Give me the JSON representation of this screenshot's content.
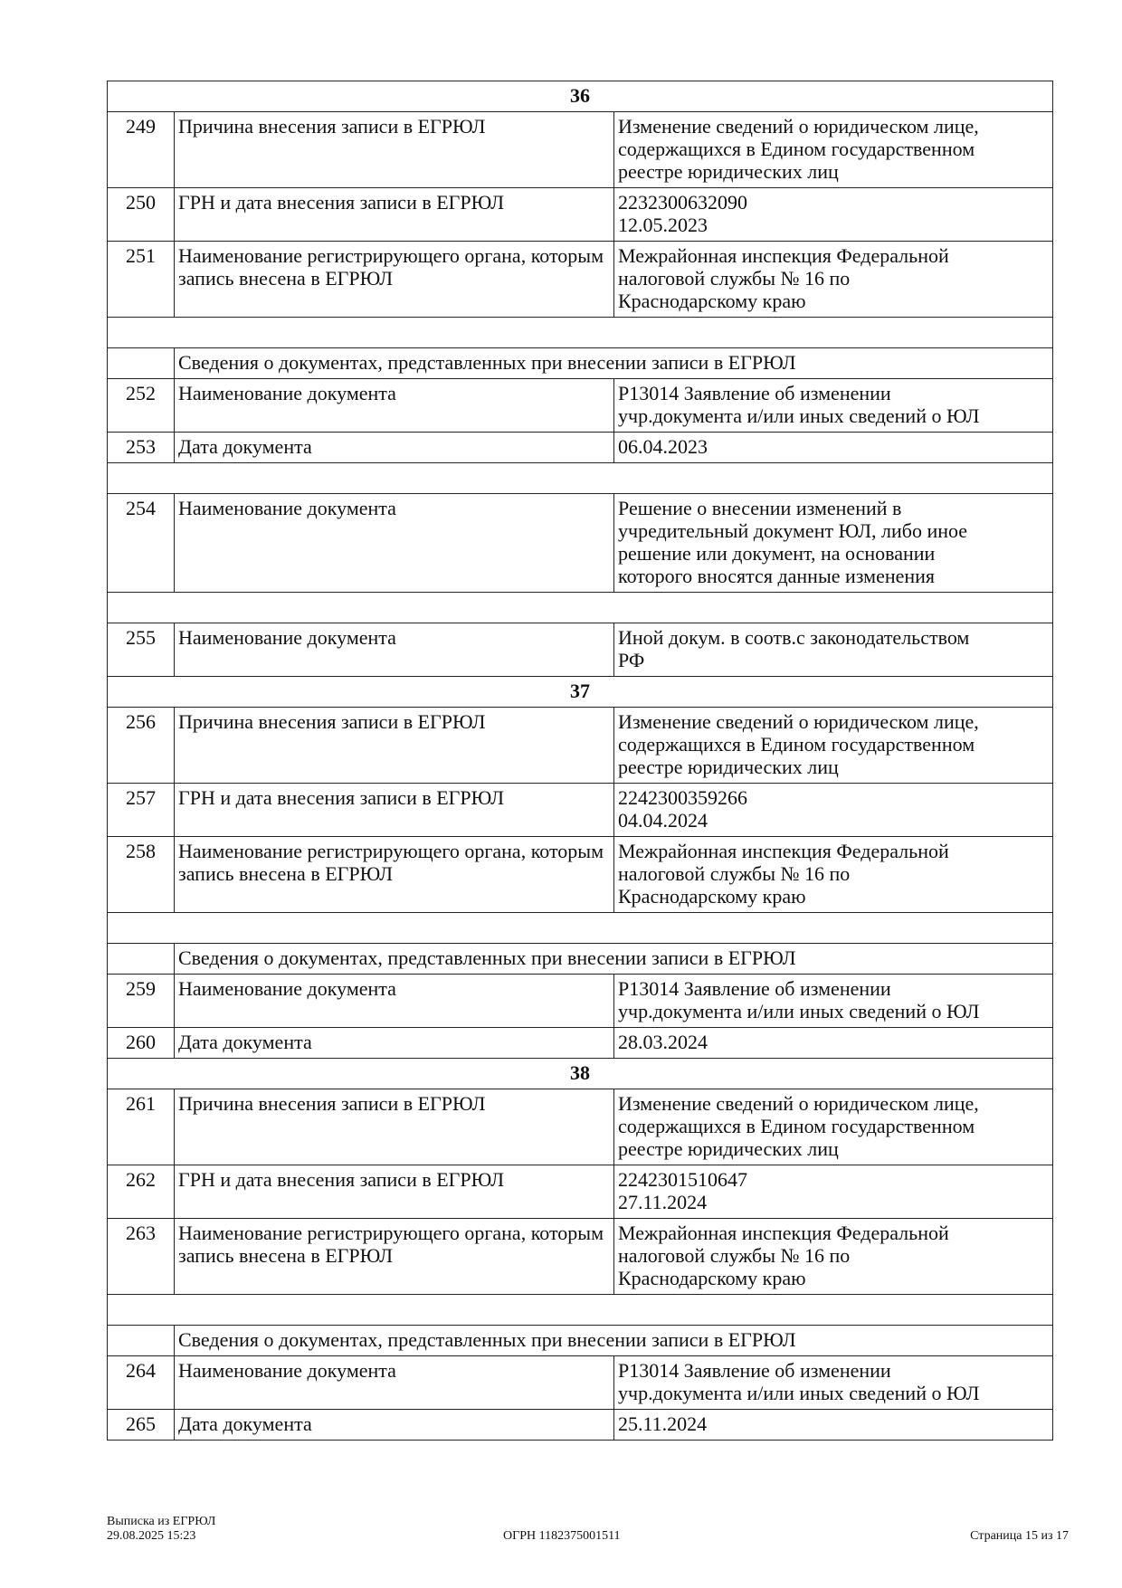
{
  "rows": [
    {
      "type": "group",
      "label": "36"
    },
    {
      "type": "item",
      "num": "249",
      "label": "Причина внесения записи в ЕГРЮЛ",
      "value": [
        "Изменение сведений о юридическом лице,",
        "содержащихся в Едином государственном",
        "реестре юридических лиц"
      ]
    },
    {
      "type": "item",
      "num": "250",
      "label": "ГРН и дата внесения записи в ЕГРЮЛ",
      "value": [
        "2232300632090",
        "12.05.2023"
      ]
    },
    {
      "type": "item",
      "num": "251",
      "label": "Наименование регистрирующего органа, которым запись внесена в ЕГРЮЛ",
      "value": [
        "Межрайонная инспекция Федеральной",
        "налоговой службы № 16 по",
        "Краснодарскому краю"
      ]
    },
    {
      "type": "empty"
    },
    {
      "type": "section",
      "label": "Сведения о документах, представленных при внесении записи в ЕГРЮЛ"
    },
    {
      "type": "item",
      "num": "252",
      "label": "Наименование документа",
      "value": [
        "Р13014 Заявление об изменении",
        "учр.документа и/или иных сведений о ЮЛ"
      ]
    },
    {
      "type": "item",
      "num": "253",
      "label": "Дата документа",
      "value": [
        "06.04.2023"
      ]
    },
    {
      "type": "empty"
    },
    {
      "type": "item",
      "num": "254",
      "label": "Наименование документа",
      "value": [
        "Решение о внесении изменений в",
        "учредительный документ ЮЛ, либо иное",
        "решение или документ, на основании",
        "которого вносятся данные изменения"
      ]
    },
    {
      "type": "empty"
    },
    {
      "type": "item",
      "num": "255",
      "label": "Наименование документа",
      "value": [
        "Иной докум. в соотв.с законодательством",
        "РФ"
      ]
    },
    {
      "type": "group",
      "label": "37"
    },
    {
      "type": "item",
      "num": "256",
      "label": "Причина внесения записи в ЕГРЮЛ",
      "value": [
        "Изменение сведений о юридическом лице,",
        "содержащихся в Едином государственном",
        "реестре юридических лиц"
      ]
    },
    {
      "type": "item",
      "num": "257",
      "label": "ГРН и дата внесения записи в ЕГРЮЛ",
      "value": [
        "2242300359266",
        "04.04.2024"
      ]
    },
    {
      "type": "item",
      "num": "258",
      "label": "Наименование регистрирующего органа, которым запись внесена в ЕГРЮЛ",
      "value": [
        "Межрайонная инспекция Федеральной",
        "налоговой службы № 16 по",
        "Краснодарскому краю"
      ]
    },
    {
      "type": "empty"
    },
    {
      "type": "section",
      "label": "Сведения о документах, представленных при внесении записи в ЕГРЮЛ"
    },
    {
      "type": "item",
      "num": "259",
      "label": "Наименование документа",
      "value": [
        "Р13014 Заявление об изменении",
        "учр.документа и/или иных сведений о ЮЛ"
      ]
    },
    {
      "type": "item",
      "num": "260",
      "label": "Дата документа",
      "value": [
        "28.03.2024"
      ]
    },
    {
      "type": "group",
      "label": "38"
    },
    {
      "type": "item",
      "num": "261",
      "label": "Причина внесения записи в ЕГРЮЛ",
      "value": [
        "Изменение сведений о юридическом лице,",
        "содержащихся в Едином государственном",
        "реестре юридических лиц"
      ]
    },
    {
      "type": "item",
      "num": "262",
      "label": "ГРН и дата внесения записи в ЕГРЮЛ",
      "value": [
        "2242301510647",
        "27.11.2024"
      ]
    },
    {
      "type": "item",
      "num": "263",
      "label": "Наименование регистрирующего органа, которым запись внесена в ЕГРЮЛ",
      "value": [
        "Межрайонная инспекция Федеральной",
        "налоговой службы № 16 по",
        "Краснодарскому краю"
      ]
    },
    {
      "type": "empty"
    },
    {
      "type": "section",
      "label": "Сведения о документах, представленных при внесении записи в ЕГРЮЛ"
    },
    {
      "type": "item",
      "num": "264",
      "label": "Наименование документа",
      "value": [
        "Р13014 Заявление об изменении",
        "учр.документа и/или иных сведений о ЮЛ"
      ]
    },
    {
      "type": "item",
      "num": "265",
      "label": "Дата документа",
      "value": [
        "25.11.2024"
      ]
    }
  ],
  "footer": {
    "title": "Выписка из ЕГРЮЛ",
    "datetime": "29.08.2025 15:23",
    "ogrn": "ОГРН 1182375001511",
    "page": "Страница 15 из 17"
  }
}
